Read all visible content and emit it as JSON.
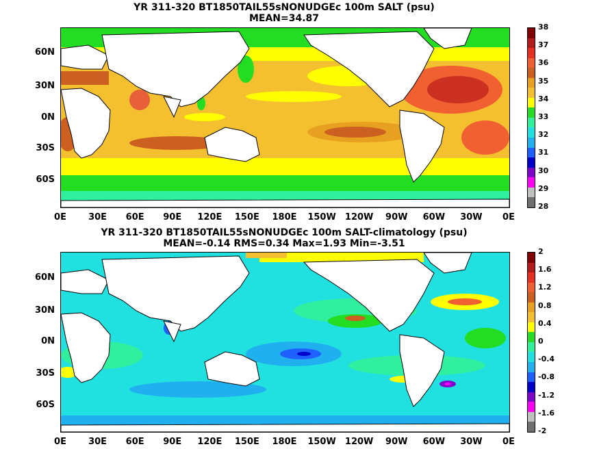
{
  "panels": [
    {
      "title_line1": "YR 311-320 BT1850TAIL55sNONUDGEc 100m SALT (psu)",
      "title_line2": "MEAN=34.87",
      "colorbar": {
        "labels": [
          "38",
          "37",
          "36",
          "35",
          "34",
          "33",
          "32",
          "31",
          "30",
          "29",
          "28"
        ],
        "colors": [
          "#800000",
          "#b31a1a",
          "#e83020",
          "#f06030",
          "#cc6020",
          "#e8a020",
          "#f5c030",
          "#ffff00",
          "#22dd22",
          "#30f0a0",
          "#20e0e0",
          "#20b0f0",
          "#2060ff",
          "#0000cc",
          "#8000cc",
          "#ff00ff",
          "#c0c0c0",
          "#707070"
        ]
      }
    },
    {
      "title_line1": "YR 311-320 BT1850TAIL55sNONUDGEc 100m SALT-climatology (psu)",
      "title_line2": "MEAN=-0.14   RMS=0.34   Max=1.93   Min=-3.51",
      "colorbar": {
        "labels": [
          "2",
          "1.6",
          "1.2",
          "0.8",
          "0.4",
          "0",
          "-0.4",
          "-0.8",
          "-1.2",
          "-1.6",
          "-2"
        ],
        "colors": [
          "#800000",
          "#b31a1a",
          "#e83020",
          "#f06030",
          "#cc6020",
          "#e8a020",
          "#f5c030",
          "#ffff00",
          "#22dd22",
          "#30f0a0",
          "#20e0e0",
          "#20b0f0",
          "#2060ff",
          "#0000cc",
          "#8000cc",
          "#ff00ff",
          "#c0c0c0",
          "#707070"
        ]
      }
    }
  ],
  "lat_labels": [
    "60N",
    "30N",
    "0N",
    "30S",
    "60S"
  ],
  "lon_labels": [
    "0E",
    "30E",
    "60E",
    "90E",
    "120E",
    "150E",
    "180E",
    "150W",
    "120W",
    "90W",
    "60W",
    "30W",
    "0E"
  ]
}
